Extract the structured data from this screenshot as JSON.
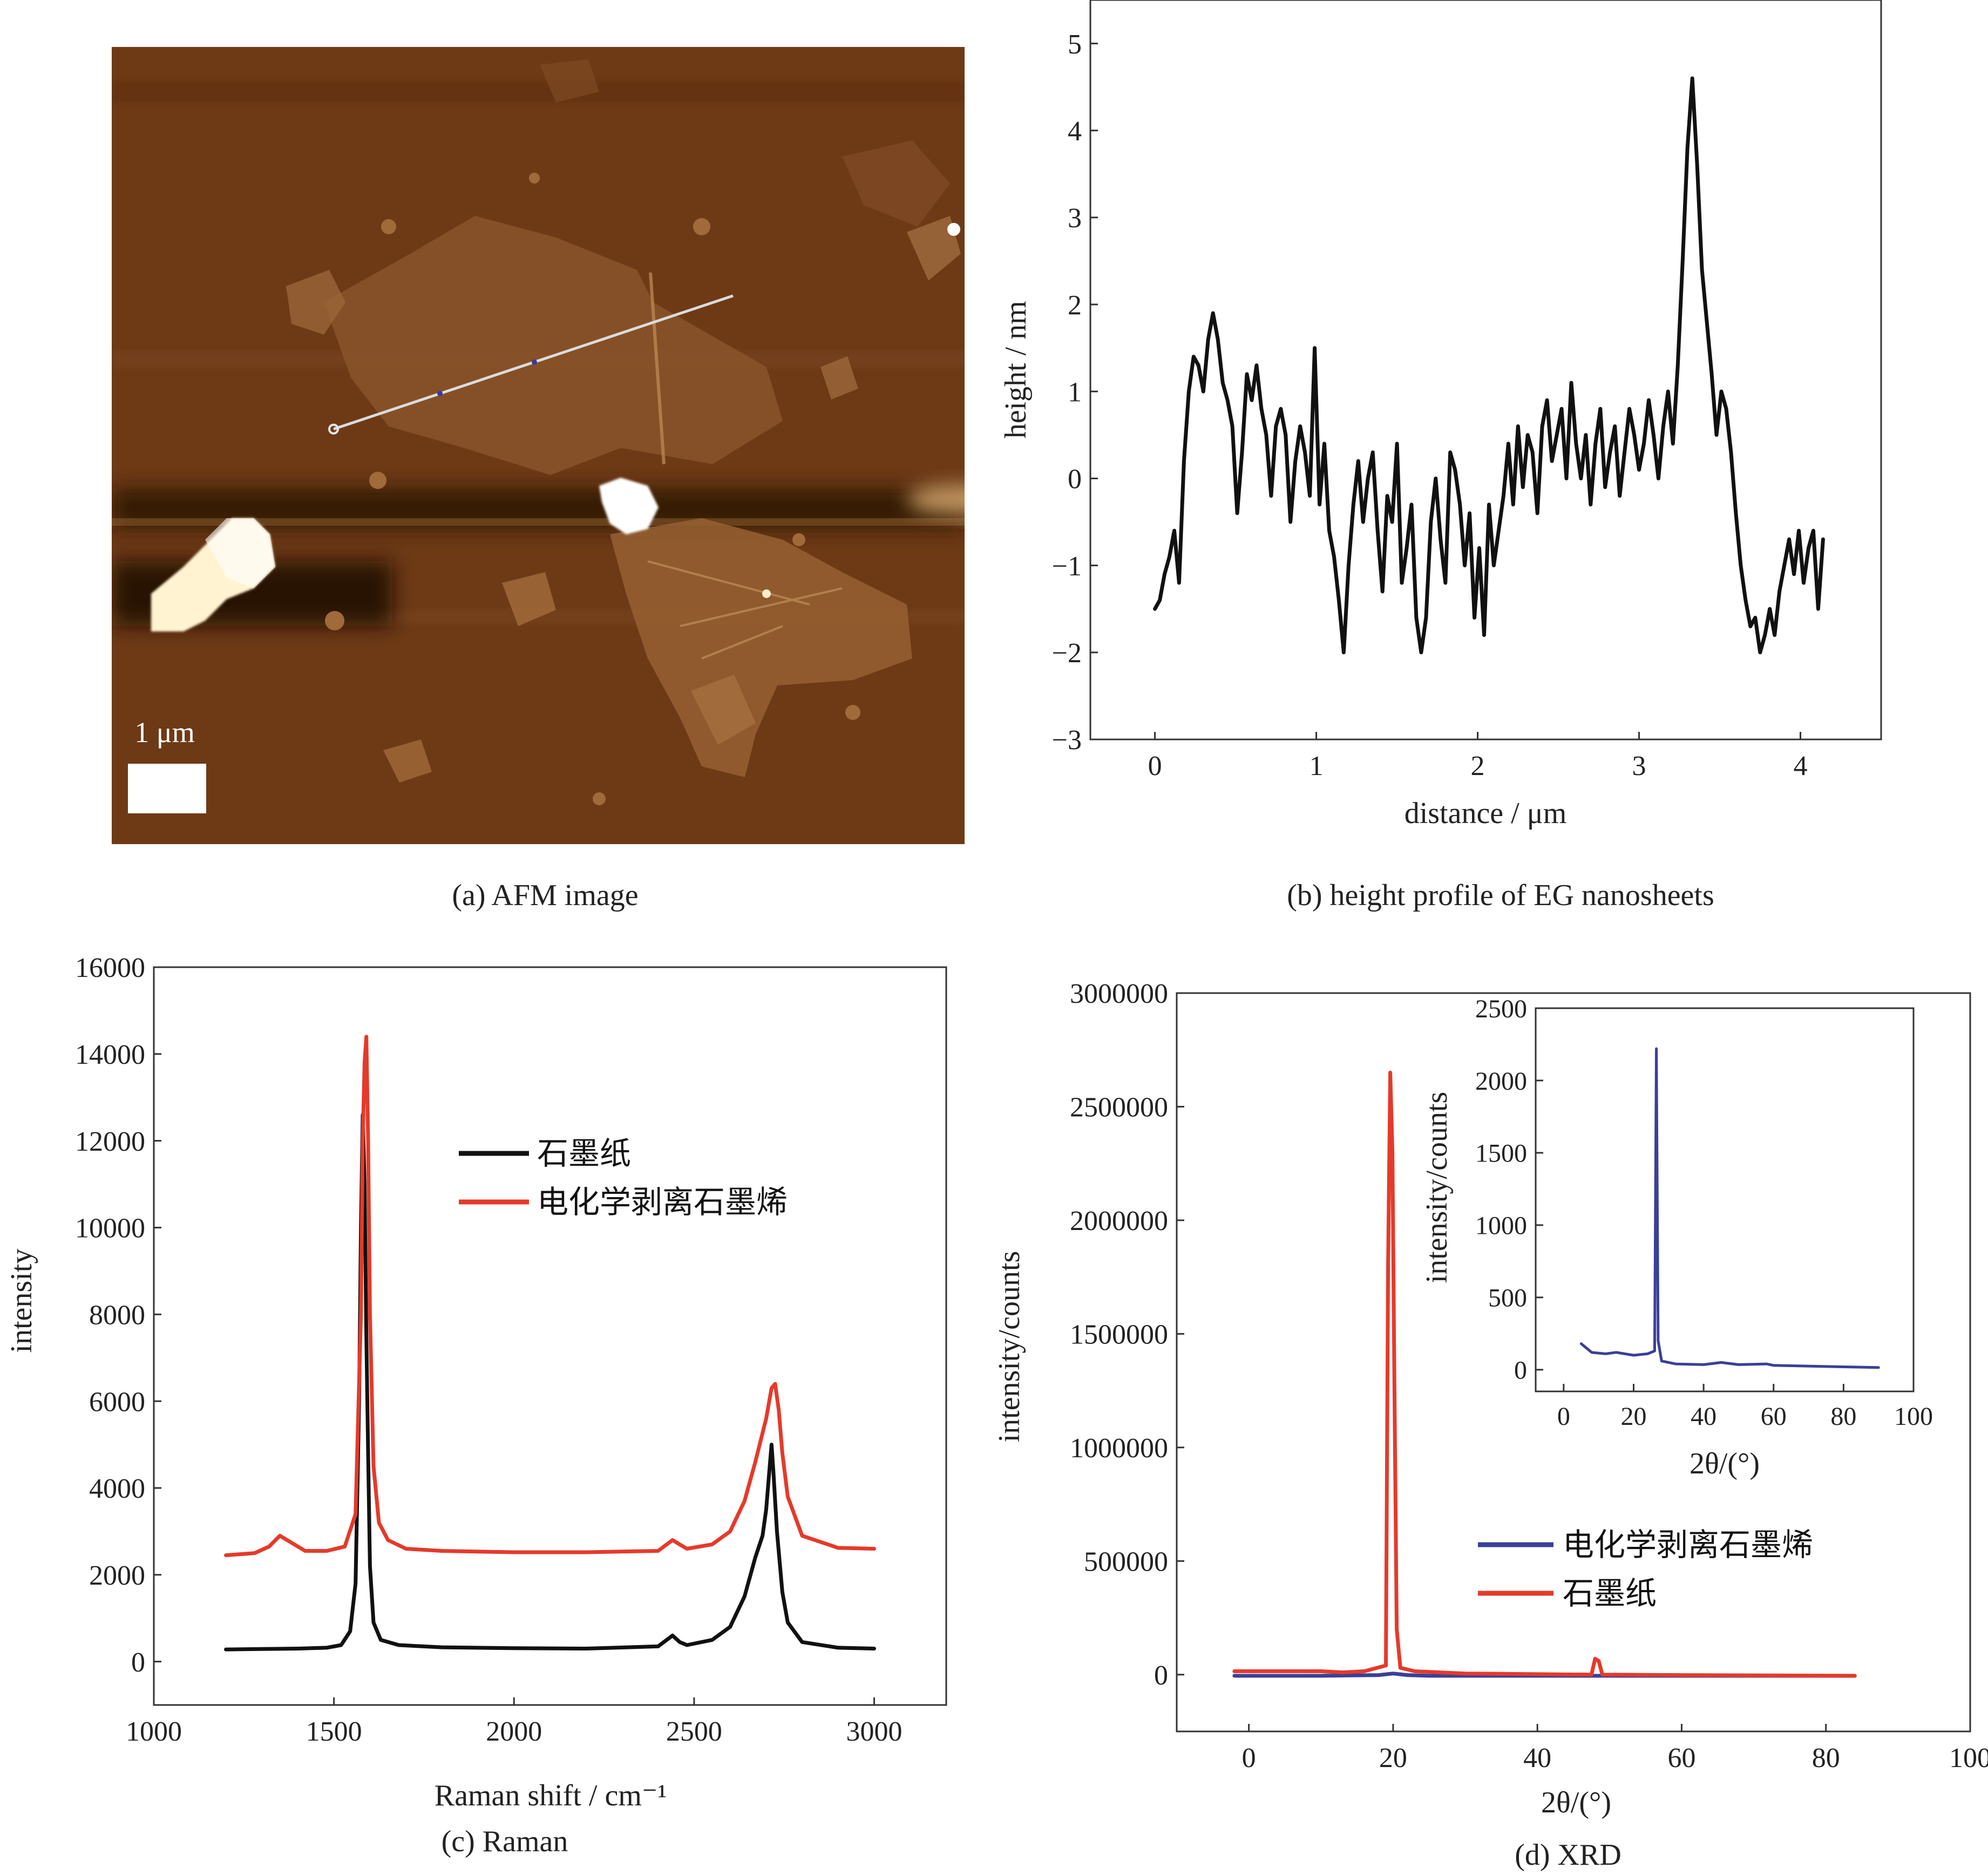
{
  "panels": {
    "a": {
      "caption": "(a) AFM image",
      "scale_bar_label": "1 μm",
      "colors": {
        "background": "#6e3a16",
        "flake": "#8e5a2e",
        "bright": "#fff6d8"
      }
    },
    "b": {
      "caption": "(b) height profile of EG nanosheets"
    },
    "c": {
      "caption": "(c) Raman"
    },
    "d": {
      "caption": "(d) XRD"
    }
  },
  "chart_data": [
    {
      "id": "b",
      "type": "line",
      "xlabel": "distance / μm",
      "ylabel": "height / nm",
      "xlim": [
        -0.4,
        4.5
      ],
      "ylim": [
        -3,
        5.5
      ],
      "xticks": [
        0,
        1,
        2,
        3,
        4
      ],
      "yticks": [
        -3,
        -2,
        -1,
        0,
        1,
        2,
        3,
        4,
        5
      ],
      "grid": false,
      "series": [
        {
          "color": "#111111",
          "x": [
            0.0,
            0.03,
            0.06,
            0.09,
            0.12,
            0.15,
            0.18,
            0.21,
            0.24,
            0.27,
            0.3,
            0.33,
            0.36,
            0.39,
            0.42,
            0.45,
            0.48,
            0.51,
            0.54,
            0.57,
            0.6,
            0.63,
            0.66,
            0.69,
            0.72,
            0.75,
            0.78,
            0.81,
            0.84,
            0.87,
            0.9,
            0.93,
            0.96,
            0.99,
            1.02,
            1.05,
            1.08,
            1.11,
            1.14,
            1.17,
            1.2,
            1.23,
            1.26,
            1.29,
            1.32,
            1.35,
            1.38,
            1.41,
            1.44,
            1.47,
            1.5,
            1.53,
            1.56,
            1.59,
            1.62,
            1.65,
            1.68,
            1.71,
            1.74,
            1.77,
            1.8,
            1.83,
            1.86,
            1.89,
            1.92,
            1.95,
            1.98,
            2.01,
            2.04,
            2.07,
            2.1,
            2.13,
            2.16,
            2.19,
            2.22,
            2.25,
            2.28,
            2.31,
            2.34,
            2.37,
            2.4,
            2.43,
            2.46,
            2.49,
            2.52,
            2.55,
            2.58,
            2.61,
            2.64,
            2.67,
            2.7,
            2.73,
            2.76,
            2.79,
            2.82,
            2.85,
            2.88,
            2.91,
            2.94,
            2.97,
            3.0,
            3.03,
            3.06,
            3.09,
            3.12,
            3.15,
            3.18,
            3.21,
            3.24,
            3.27,
            3.3,
            3.33,
            3.36,
            3.39,
            3.42,
            3.45,
            3.48,
            3.51,
            3.54,
            3.57,
            3.6,
            3.63,
            3.66,
            3.69,
            3.72,
            3.75,
            3.78,
            3.81,
            3.84,
            3.87,
            3.9,
            3.93,
            3.96,
            3.99,
            4.02,
            4.05,
            4.08,
            4.11,
            4.14
          ],
          "y": [
            -1.5,
            -1.4,
            -1.1,
            -0.9,
            -0.6,
            -1.2,
            0.2,
            1.0,
            1.4,
            1.3,
            1.0,
            1.6,
            1.9,
            1.6,
            1.1,
            0.9,
            0.6,
            -0.4,
            0.3,
            1.2,
            0.9,
            1.3,
            0.8,
            0.5,
            -0.2,
            0.6,
            0.8,
            0.5,
            -0.5,
            0.2,
            0.6,
            0.3,
            -0.2,
            1.5,
            -0.3,
            0.4,
            -0.6,
            -0.9,
            -1.4,
            -2.0,
            -1.0,
            -0.3,
            0.2,
            -0.5,
            0.0,
            0.3,
            -0.6,
            -1.3,
            -0.2,
            -0.5,
            0.4,
            -1.2,
            -0.8,
            -0.3,
            -1.6,
            -2.0,
            -1.6,
            -0.5,
            0.0,
            -0.7,
            -1.2,
            0.3,
            0.1,
            -0.3,
            -1.0,
            -0.4,
            -1.6,
            -0.8,
            -1.8,
            -0.3,
            -1.0,
            -0.6,
            -0.2,
            0.4,
            -0.3,
            0.6,
            -0.1,
            0.5,
            0.3,
            -0.4,
            0.6,
            0.9,
            0.2,
            0.5,
            0.8,
            0.0,
            1.1,
            0.4,
            0.0,
            0.5,
            -0.3,
            0.4,
            0.8,
            -0.1,
            0.3,
            0.6,
            -0.2,
            0.3,
            0.8,
            0.5,
            0.1,
            0.4,
            0.9,
            0.5,
            0.0,
            0.6,
            1.0,
            0.4,
            1.3,
            2.5,
            3.8,
            4.6,
            3.6,
            2.4,
            1.8,
            1.2,
            0.5,
            1.0,
            0.8,
            0.3,
            -0.4,
            -1.0,
            -1.4,
            -1.7,
            -1.6,
            -2.0,
            -1.8,
            -1.5,
            -1.8,
            -1.3,
            -1.0,
            -0.7,
            -1.1,
            -0.6,
            -1.2,
            -0.8,
            -0.6,
            -1.5,
            -0.7
          ]
        }
      ]
    },
    {
      "id": "c",
      "type": "line",
      "xlabel": "Raman shift / cm⁻¹",
      "ylabel": "intensity",
      "xlim": [
        1000,
        3200
      ],
      "ylim": [
        -1000,
        16000
      ],
      "xticks": [
        1000,
        1500,
        2000,
        2500,
        3000
      ],
      "yticks": [
        0,
        2000,
        4000,
        6000,
        8000,
        10000,
        12000,
        14000,
        16000
      ],
      "grid": false,
      "legend_position": "upper-center",
      "series": [
        {
          "name": "石墨纸",
          "color": "#111111",
          "x": [
            1200,
            1300,
            1400,
            1480,
            1520,
            1545,
            1560,
            1570,
            1575,
            1580,
            1585,
            1590,
            1595,
            1600,
            1610,
            1630,
            1680,
            1800,
            2000,
            2200,
            2400,
            2440,
            2460,
            2480,
            2550,
            2600,
            2640,
            2670,
            2690,
            2700,
            2710,
            2715,
            2720,
            2730,
            2745,
            2760,
            2800,
            2900,
            3000
          ],
          "y": [
            280,
            290,
            300,
            320,
            380,
            700,
            1800,
            6000,
            10000,
            12600,
            11000,
            7500,
            4800,
            2200,
            900,
            500,
            380,
            330,
            310,
            300,
            350,
            600,
            450,
            380,
            500,
            800,
            1500,
            2400,
            2900,
            3500,
            4500,
            5000,
            4400,
            3000,
            1600,
            900,
            450,
            320,
            300
          ]
        },
        {
          "name": "电化学剥离石墨烯",
          "color": "#e53a2a",
          "x": [
            1200,
            1280,
            1320,
            1350,
            1380,
            1420,
            1480,
            1530,
            1560,
            1575,
            1580,
            1585,
            1590,
            1595,
            1600,
            1610,
            1625,
            1650,
            1700,
            1800,
            2000,
            2200,
            2400,
            2440,
            2460,
            2480,
            2550,
            2600,
            2640,
            2670,
            2700,
            2715,
            2725,
            2735,
            2745,
            2760,
            2800,
            2900,
            3000
          ],
          "y": [
            2450,
            2500,
            2650,
            2900,
            2750,
            2550,
            2550,
            2650,
            3400,
            8000,
            12000,
            13800,
            14400,
            12000,
            8000,
            4500,
            3200,
            2800,
            2600,
            2550,
            2520,
            2520,
            2550,
            2800,
            2700,
            2600,
            2700,
            3000,
            3700,
            4600,
            5600,
            6300,
            6400,
            5800,
            4800,
            3800,
            2900,
            2620,
            2600
          ]
        }
      ]
    },
    {
      "id": "d",
      "type": "line",
      "xlabel": "2θ/(°)",
      "ylabel": "intensity/counts",
      "xlim": [
        -10,
        100
      ],
      "ylim": [
        -250000,
        3000000
      ],
      "xticks": [
        0,
        20,
        40,
        60,
        80,
        100
      ],
      "yticks": [
        0,
        500000,
        1000000,
        1500000,
        2000000,
        2500000,
        3000000
      ],
      "grid": false,
      "legend_position": "lower-right",
      "series": [
        {
          "name": "电化学剥离石墨烯",
          "color": "#3a3f9a",
          "x": [
            -2,
            10,
            18,
            20,
            22,
            25,
            30,
            40,
            60,
            84
          ],
          "y": [
            -5000,
            -5000,
            -2000,
            5000,
            -2000,
            -5000,
            -5000,
            -5000,
            -5000,
            -5000
          ]
        },
        {
          "name": "石墨纸",
          "color": "#e53a2a",
          "x": [
            -2,
            10,
            13,
            16,
            19,
            19.3,
            19.6,
            19.9,
            20.2,
            20.5,
            21,
            23,
            30,
            47.5,
            48,
            48.5,
            49,
            60,
            84
          ],
          "y": [
            15000,
            15000,
            10000,
            15000,
            40000,
            1800000,
            2650000,
            2300000,
            1200000,
            200000,
            30000,
            15000,
            5000,
            0,
            70000,
            60000,
            0,
            -2000,
            -5000
          ]
        }
      ],
      "inset": {
        "type": "line",
        "xlabel": "2θ/(°)",
        "ylabel": "intensity/counts",
        "xlim": [
          -8,
          100
        ],
        "ylim": [
          -150,
          2500
        ],
        "xticks": [
          0,
          20,
          40,
          60,
          80,
          100
        ],
        "yticks": [
          0,
          500,
          1000,
          1500,
          2000,
          2500
        ],
        "series": [
          {
            "color": "#3a3f9a",
            "x": [
              5,
              8,
              12,
              15,
              20,
              24,
              26,
              26.5,
              27,
              28,
              32,
              40,
              45,
              50,
              58,
              60,
              70,
              80,
              90
            ],
            "y": [
              180,
              120,
              110,
              120,
              100,
              110,
              130,
              2220,
              200,
              60,
              40,
              35,
              50,
              35,
              40,
              30,
              25,
              20,
              15
            ]
          }
        ]
      }
    }
  ]
}
